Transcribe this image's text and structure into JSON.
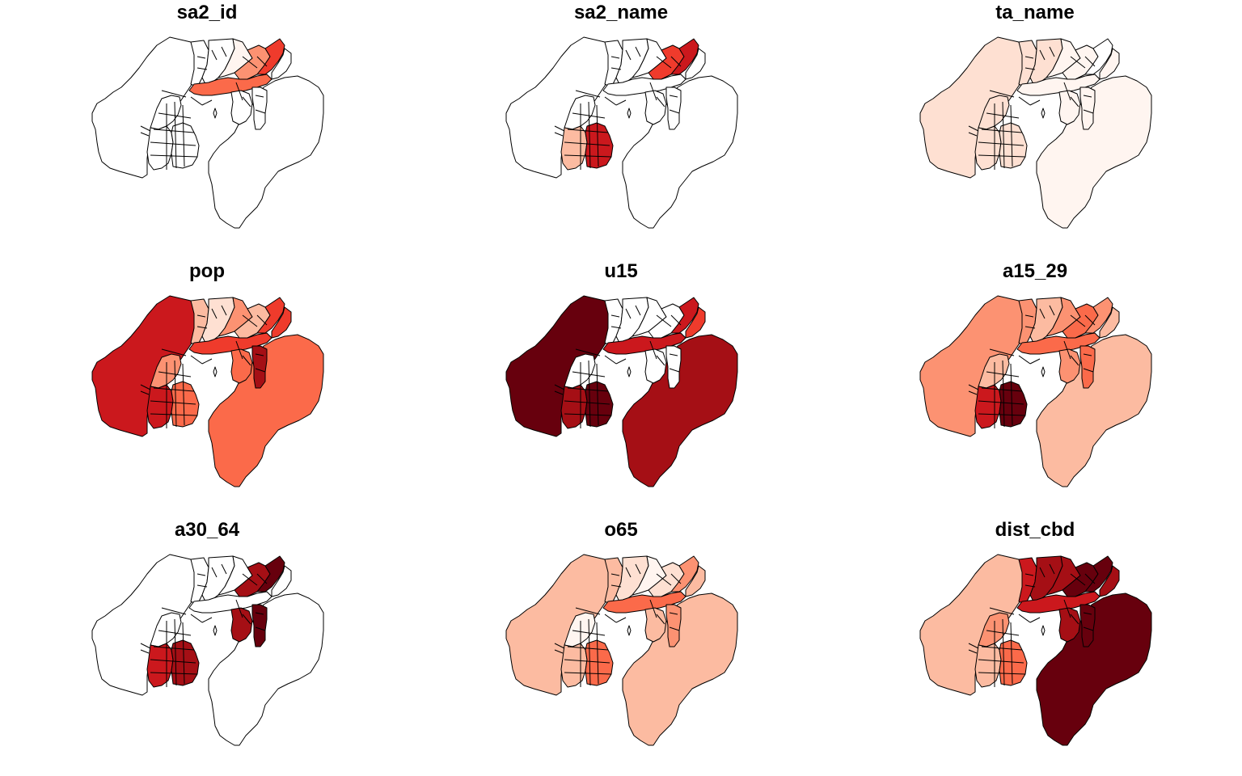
{
  "figure": {
    "type": "choropleth-small-multiples",
    "palette": [
      "#ffffff",
      "#fff5f0",
      "#fee0d2",
      "#fcbba1",
      "#fc9272",
      "#fb6a4a",
      "#ef3b2c",
      "#cb181d",
      "#a50f15",
      "#67000d"
    ]
  },
  "panels": [
    {
      "id": "sa2_id",
      "title": "sa2_id",
      "regions": {
        "west": "#ffffff",
        "east": "#ffffff",
        "north_a": "#ffffff",
        "north_b": "#ffffff",
        "north_c": "#fff5f0",
        "north_d": "#fc9272",
        "north_e": "#ef3b2c",
        "harbour_band": "#fb6a4a",
        "central": "#ffffff",
        "south_a": "#ffffff",
        "south_b": "#ffffff",
        "hutt_a": "#ffffff",
        "hutt_b": "#ffffff",
        "east_strip": "#ffffff"
      }
    },
    {
      "id": "sa2_name",
      "title": "sa2_name",
      "regions": {
        "west": "#ffffff",
        "east": "#ffffff",
        "north_a": "#ffffff",
        "north_b": "#ffffff",
        "north_c": "#ffffff",
        "north_d": "#ef3b2c",
        "north_e": "#cb181d",
        "harbour_band": "#ffffff",
        "central": "#ffffff",
        "south_a": "#fcbba1",
        "south_b": "#cb181d",
        "hutt_a": "#ffffff",
        "hutt_b": "#ffffff",
        "east_strip": "#ffffff"
      }
    },
    {
      "id": "ta_name",
      "title": "ta_name",
      "regions": {
        "west": "#fee0d2",
        "east": "#fff5f0",
        "north_a": "#fee0d2",
        "north_b": "#fee0d2",
        "north_c": "#fff5f0",
        "north_d": "#fff5f0",
        "north_e": "#ffffff",
        "harbour_band": "#fff5f0",
        "central": "#fee0d2",
        "south_a": "#fee0d2",
        "south_b": "#fee0d2",
        "hutt_a": "#fff5f0",
        "hutt_b": "#fff5f0",
        "east_strip": "#fff5f0"
      }
    },
    {
      "id": "pop",
      "title": "pop",
      "regions": {
        "west": "#cb181d",
        "east": "#fb6a4a",
        "north_a": "#fcbba1",
        "north_b": "#fee0d2",
        "north_c": "#fc9272",
        "north_d": "#fcbba1",
        "north_e": "#ef3b2c",
        "harbour_band": "#ef3b2c",
        "central": "#fc9272",
        "south_a": "#cb181d",
        "south_b": "#fb6a4a",
        "hutt_a": "#fb6a4a",
        "hutt_b": "#a50f15",
        "east_strip": "#ef3b2c"
      }
    },
    {
      "id": "u15",
      "title": "u15",
      "regions": {
        "west": "#67000d",
        "east": "#a50f15",
        "north_a": "#ffffff",
        "north_b": "#ffffff",
        "north_c": "#ffffff",
        "north_d": "#ffffff",
        "north_e": "#cb181d",
        "harbour_band": "#cb181d",
        "central": "#ffffff",
        "south_a": "#a50f15",
        "south_b": "#67000d",
        "hutt_a": "#ffffff",
        "hutt_b": "#ffffff",
        "east_strip": "#ef3b2c"
      }
    },
    {
      "id": "a15_29",
      "title": "a15_29",
      "regions": {
        "west": "#fc9272",
        "east": "#fcbba1",
        "north_a": "#fc9272",
        "north_b": "#fcbba1",
        "north_c": "#fc9272",
        "north_d": "#fb6a4a",
        "north_e": "#fc9272",
        "harbour_band": "#fb6a4a",
        "central": "#fcbba1",
        "south_a": "#cb181d",
        "south_b": "#67000d",
        "hutt_a": "#fc9272",
        "hutt_b": "#fb6a4a",
        "east_strip": "#fcbba1"
      }
    },
    {
      "id": "a30_64",
      "title": "a30_64",
      "regions": {
        "west": "#ffffff",
        "east": "#ffffff",
        "north_a": "#ffffff",
        "north_b": "#ffffff",
        "north_c": "#ffffff",
        "north_d": "#a50f15",
        "north_e": "#67000d",
        "harbour_band": "#ffffff",
        "central": "#ffffff",
        "south_a": "#cb181d",
        "south_b": "#a50f15",
        "hutt_a": "#a50f15",
        "hutt_b": "#67000d",
        "east_strip": "#ffffff"
      }
    },
    {
      "id": "o65",
      "title": "o65",
      "regions": {
        "west": "#fcbba1",
        "east": "#fcbba1",
        "north_a": "#fcbba1",
        "north_b": "#fee0d2",
        "north_c": "#fff5f0",
        "north_d": "#fee0d2",
        "north_e": "#fc9272",
        "harbour_band": "#fb6a4a",
        "central": "#fff5f0",
        "south_a": "#fcbba1",
        "south_b": "#fb6a4a",
        "hutt_a": "#fcbba1",
        "hutt_b": "#fc9272",
        "east_strip": "#fcbba1"
      }
    },
    {
      "id": "dist_cbd",
      "title": "dist_cbd",
      "regions": {
        "west": "#fcbba1",
        "east": "#67000d",
        "north_a": "#cb181d",
        "north_b": "#a50f15",
        "north_c": "#a50f15",
        "north_d": "#67000d",
        "north_e": "#67000d",
        "harbour_band": "#cb181d",
        "central": "#fc9272",
        "south_a": "#fcbba1",
        "south_b": "#fb6a4a",
        "hutt_a": "#a50f15",
        "hutt_b": "#67000d",
        "east_strip": "#a50f15"
      }
    }
  ]
}
